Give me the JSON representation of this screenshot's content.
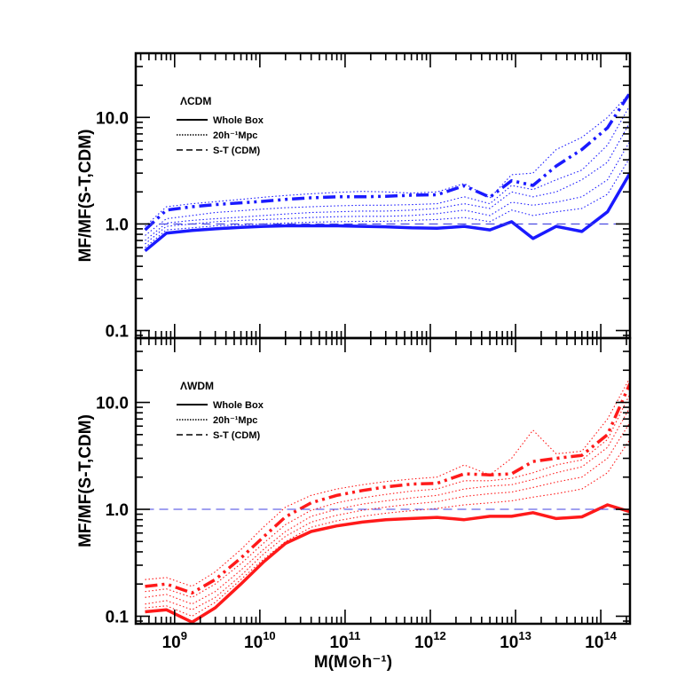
{
  "chart_data": [
    {
      "type": "line",
      "panel": "top",
      "ylabel": "MF/MF(S-T,CDM)",
      "xlabel": "",
      "x_scale": "log",
      "y_scale": "log",
      "xlim": [
        350000000.0,
        220000000000000.0
      ],
      "ylim": [
        0.085,
        40
      ],
      "yticks": [
        0.1,
        1.0,
        10.0
      ],
      "ytick_labels": [
        "0.1",
        "1.0",
        "10.0"
      ],
      "legend": {
        "title": "ΛCDM",
        "entries": [
          {
            "label": "Whole Box",
            "style": "solid"
          },
          {
            "label": "20h⁻¹Mpc",
            "style": "dotted"
          },
          {
            "label": "S-T (CDM)",
            "style": "dashed"
          }
        ]
      },
      "color": "#1a1aff",
      "reference_color": "#4040e0",
      "x": [
        450000000.0,
        800000000.0,
        1600000000.0,
        3000000000.0,
        6000000000.0,
        11000000000.0,
        20000000000.0,
        40000000000.0,
        80000000000.0,
        160000000000.0,
        300000000000.0,
        600000000000.0,
        1200000000000.0,
        2500000000000.0,
        5000000000000.0,
        9000000000000.0,
        16000000000000.0,
        30000000000000.0,
        60000000000000.0,
        120000000000000.0,
        220000000000000.0
      ],
      "series": [
        {
          "name": "Whole Box",
          "style": "solid",
          "values": [
            0.56,
            0.82,
            0.87,
            0.9,
            0.93,
            0.95,
            0.96,
            0.96,
            0.96,
            0.95,
            0.94,
            0.92,
            0.91,
            0.95,
            0.88,
            1.05,
            0.73,
            0.95,
            0.85,
            1.3,
            3.0
          ]
        },
        {
          "name": "20h⁻¹Mpc",
          "style": "dashdotdot",
          "values": [
            0.88,
            1.35,
            1.45,
            1.52,
            1.58,
            1.63,
            1.7,
            1.76,
            1.8,
            1.8,
            1.82,
            1.86,
            1.88,
            2.28,
            1.78,
            2.55,
            2.3,
            3.5,
            5.0,
            8.0,
            17.0
          ]
        },
        {
          "style": "dotted",
          "values": [
            0.95,
            1.45,
            1.55,
            1.62,
            1.7,
            1.78,
            1.85,
            1.92,
            1.98,
            2.02,
            2.0,
            1.95,
            2.0,
            2.4,
            1.75,
            2.9,
            3.0,
            5.0,
            6.5,
            10.0,
            17.0
          ]
        },
        {
          "style": "dotted",
          "values": [
            0.78,
            1.12,
            1.2,
            1.28,
            1.33,
            1.38,
            1.42,
            1.45,
            1.48,
            1.5,
            1.5,
            1.52,
            1.55,
            1.8,
            1.55,
            2.3,
            2.1,
            2.6,
            3.2,
            5.5,
            13.0
          ]
        },
        {
          "style": "dotted",
          "values": [
            0.7,
            1.02,
            1.08,
            1.12,
            1.16,
            1.2,
            1.24,
            1.28,
            1.3,
            1.32,
            1.32,
            1.35,
            1.4,
            1.55,
            1.4,
            2.0,
            1.8,
            2.0,
            2.6,
            3.8,
            9.0
          ]
        },
        {
          "style": "dotted",
          "values": [
            0.65,
            0.95,
            1.0,
            1.05,
            1.08,
            1.1,
            1.12,
            1.15,
            1.17,
            1.18,
            1.18,
            1.2,
            1.25,
            1.35,
            1.2,
            1.6,
            1.5,
            1.6,
            1.8,
            2.6,
            6.0
          ]
        },
        {
          "style": "dotted",
          "values": [
            0.6,
            0.88,
            0.92,
            0.96,
            0.98,
            1.0,
            1.02,
            1.04,
            1.05,
            1.06,
            1.06,
            1.08,
            1.1,
            1.15,
            1.05,
            1.35,
            1.2,
            1.3,
            1.4,
            1.9,
            4.2
          ]
        },
        {
          "name": "S-T (CDM)",
          "style": "dashed",
          "values": [
            1.0,
            1.0,
            1.0,
            1.0,
            1.0,
            1.0,
            1.0,
            1.0,
            1.0,
            1.0,
            1.0,
            1.0,
            1.0,
            1.0,
            1.0,
            1.0,
            1.0,
            1.0,
            1.0,
            1.0,
            1.0
          ]
        }
      ]
    },
    {
      "type": "line",
      "panel": "bottom",
      "ylabel": "MF/MF(S-T,CDM)",
      "xlabel": "M(M⊙h⁻¹)",
      "x_scale": "log",
      "y_scale": "log",
      "xlim": [
        350000000.0,
        220000000000000.0
      ],
      "ylim": [
        0.085,
        40
      ],
      "yticks": [
        0.1,
        1.0,
        10.0
      ],
      "ytick_labels": [
        "0.1",
        "1.0",
        "10.0"
      ],
      "xticks": [
        1000000000.0,
        10000000000.0,
        100000000000.0,
        1000000000000.0,
        10000000000000.0,
        100000000000000.0
      ],
      "xtick_bases": [
        "10",
        "10",
        "10",
        "10",
        "10",
        "10"
      ],
      "xtick_exponents": [
        "9",
        "10",
        "11",
        "12",
        "13",
        "14"
      ],
      "legend": {
        "title": "ΛWDM",
        "entries": [
          {
            "label": "Whole Box",
            "style": "solid"
          },
          {
            "label": "20h⁻¹Mpc",
            "style": "dotted"
          },
          {
            "label": "S-T (CDM)",
            "style": "dashed"
          }
        ]
      },
      "color": "#ff1a1a",
      "reference_color": "#4040e0",
      "x": [
        450000000.0,
        800000000.0,
        1600000000.0,
        3000000000.0,
        6000000000.0,
        11000000000.0,
        20000000000.0,
        40000000000.0,
        80000000000.0,
        160000000000.0,
        300000000000.0,
        600000000000.0,
        1200000000000.0,
        2500000000000.0,
        5000000000000.0,
        9000000000000.0,
        16000000000000.0,
        30000000000000.0,
        60000000000000.0,
        120000000000000.0,
        220000000000000.0
      ],
      "series": [
        {
          "name": "Whole Box",
          "style": "solid",
          "values": [
            0.11,
            0.115,
            0.088,
            0.12,
            0.2,
            0.32,
            0.48,
            0.62,
            0.7,
            0.76,
            0.8,
            0.82,
            0.84,
            0.8,
            0.86,
            0.86,
            0.93,
            0.82,
            0.85,
            1.1,
            0.95
          ]
        },
        {
          "name": "20h⁻¹Mpc",
          "style": "dashdotdot",
          "values": [
            0.19,
            0.2,
            0.165,
            0.22,
            0.35,
            0.55,
            0.85,
            1.15,
            1.35,
            1.5,
            1.62,
            1.72,
            1.75,
            2.15,
            2.1,
            2.15,
            2.8,
            3.0,
            3.2,
            5.0,
            15.0
          ]
        },
        {
          "style": "dotted",
          "values": [
            0.22,
            0.23,
            0.19,
            0.26,
            0.42,
            0.68,
            1.05,
            1.35,
            1.55,
            1.7,
            1.82,
            1.92,
            2.0,
            2.6,
            2.1,
            3.0,
            5.5,
            3.3,
            3.5,
            7.0,
            17.0
          ]
        },
        {
          "style": "dotted",
          "values": [
            0.17,
            0.18,
            0.15,
            0.2,
            0.31,
            0.48,
            0.72,
            0.98,
            1.15,
            1.28,
            1.38,
            1.48,
            1.55,
            1.85,
            1.85,
            1.95,
            2.2,
            2.6,
            2.9,
            4.5,
            12.0
          ]
        },
        {
          "style": "dotted",
          "values": [
            0.15,
            0.16,
            0.13,
            0.17,
            0.27,
            0.42,
            0.62,
            0.86,
            1.0,
            1.12,
            1.2,
            1.28,
            1.35,
            1.55,
            1.65,
            1.7,
            1.9,
            2.2,
            2.5,
            3.8,
            9.0
          ]
        },
        {
          "style": "dotted",
          "values": [
            0.13,
            0.14,
            0.115,
            0.15,
            0.24,
            0.38,
            0.56,
            0.76,
            0.88,
            0.98,
            1.05,
            1.12,
            1.18,
            1.32,
            1.4,
            1.45,
            1.6,
            1.8,
            2.0,
            3.0,
            6.5
          ]
        },
        {
          "style": "dotted",
          "values": [
            0.12,
            0.125,
            0.1,
            0.135,
            0.22,
            0.34,
            0.5,
            0.68,
            0.78,
            0.86,
            0.92,
            0.97,
            1.02,
            1.1,
            1.15,
            1.2,
            1.3,
            1.4,
            1.55,
            2.2,
            4.5
          ]
        },
        {
          "name": "S-T (CDM)",
          "style": "dashed",
          "values": [
            1.0,
            1.0,
            1.0,
            1.0,
            1.0,
            1.0,
            1.0,
            1.0,
            1.0,
            1.0,
            1.0,
            1.0,
            1.0,
            1.0,
            1.0,
            1.0,
            1.0,
            1.0,
            1.0,
            1.0,
            1.0
          ]
        }
      ]
    }
  ]
}
